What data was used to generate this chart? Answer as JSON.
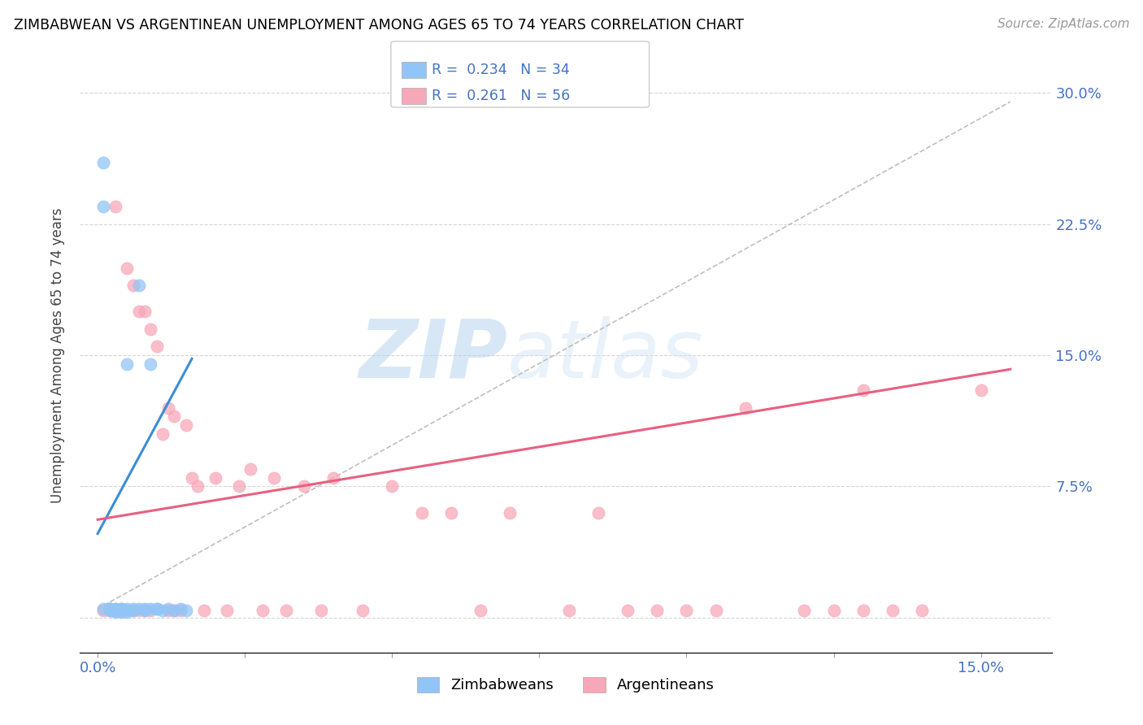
{
  "title": "ZIMBABWEAN VS ARGENTINEAN UNEMPLOYMENT AMONG AGES 65 TO 74 YEARS CORRELATION CHART",
  "source": "Source: ZipAtlas.com",
  "ylabel": "Unemployment Among Ages 65 to 74 years",
  "xlim": [
    -0.003,
    0.162
  ],
  "ylim": [
    -0.02,
    0.32
  ],
  "zimbabwe_color": "#92c5f7",
  "argentina_color": "#f7a8b8",
  "zimbabwe_trend_color": "#3b8ed4",
  "argentina_trend_color": "#e86080",
  "grid_color": "#cccccc",
  "legend_R_zimbabwe": "0.234",
  "legend_N_zimbabwe": "34",
  "legend_R_argentina": "0.261",
  "legend_N_argentina": "56",
  "legend_label_zimbabwe": "Zimbabweans",
  "legend_label_argentina": "Argentineans",
  "watermark": "ZIPAtlas",
  "x_tick_positions": [
    0.0,
    0.025,
    0.05,
    0.075,
    0.1,
    0.125,
    0.15
  ],
  "x_tick_labels": [
    "0.0%",
    "",
    "",
    "",
    "",
    "",
    "15.0%"
  ],
  "y_tick_positions": [
    0.0,
    0.075,
    0.15,
    0.225,
    0.3
  ],
  "y_tick_labels": [
    "",
    "7.5%",
    "15.0%",
    "22.5%",
    "30.0%"
  ],
  "zim_x": [
    0.001,
    0.001,
    0.002,
    0.002,
    0.002,
    0.003,
    0.003,
    0.003,
    0.003,
    0.004,
    0.004,
    0.004,
    0.005,
    0.005,
    0.005,
    0.006,
    0.006,
    0.007,
    0.007,
    0.008,
    0.008,
    0.009,
    0.009,
    0.01,
    0.01,
    0.011,
    0.012,
    0.013,
    0.014,
    0.015,
    0.001,
    0.002,
    0.003,
    0.004
  ],
  "zim_y": [
    0.26,
    0.235,
    0.005,
    0.005,
    0.004,
    0.005,
    0.004,
    0.004,
    0.003,
    0.005,
    0.004,
    0.003,
    0.005,
    0.145,
    0.003,
    0.005,
    0.004,
    0.005,
    0.19,
    0.005,
    0.004,
    0.005,
    0.145,
    0.005,
    0.005,
    0.004,
    0.005,
    0.004,
    0.005,
    0.004,
    0.005,
    0.005,
    0.005,
    0.005
  ],
  "arg_x": [
    0.001,
    0.002,
    0.003,
    0.003,
    0.004,
    0.005,
    0.005,
    0.006,
    0.006,
    0.007,
    0.007,
    0.008,
    0.008,
    0.009,
    0.009,
    0.01,
    0.011,
    0.012,
    0.012,
    0.013,
    0.013,
    0.014,
    0.015,
    0.016,
    0.017,
    0.018,
    0.02,
    0.022,
    0.024,
    0.026,
    0.028,
    0.03,
    0.032,
    0.035,
    0.038,
    0.04,
    0.045,
    0.05,
    0.055,
    0.06,
    0.065,
    0.07,
    0.08,
    0.085,
    0.09,
    0.095,
    0.1,
    0.105,
    0.11,
    0.12,
    0.125,
    0.13,
    0.13,
    0.135,
    0.14,
    0.15
  ],
  "arg_y": [
    0.004,
    0.004,
    0.235,
    0.004,
    0.004,
    0.2,
    0.004,
    0.19,
    0.004,
    0.175,
    0.004,
    0.175,
    0.004,
    0.165,
    0.004,
    0.155,
    0.105,
    0.12,
    0.004,
    0.115,
    0.004,
    0.004,
    0.11,
    0.08,
    0.075,
    0.004,
    0.08,
    0.004,
    0.075,
    0.085,
    0.004,
    0.08,
    0.004,
    0.075,
    0.004,
    0.08,
    0.004,
    0.075,
    0.06,
    0.06,
    0.004,
    0.06,
    0.004,
    0.06,
    0.004,
    0.004,
    0.004,
    0.004,
    0.12,
    0.004,
    0.004,
    0.004,
    0.13,
    0.004,
    0.004,
    0.13
  ]
}
